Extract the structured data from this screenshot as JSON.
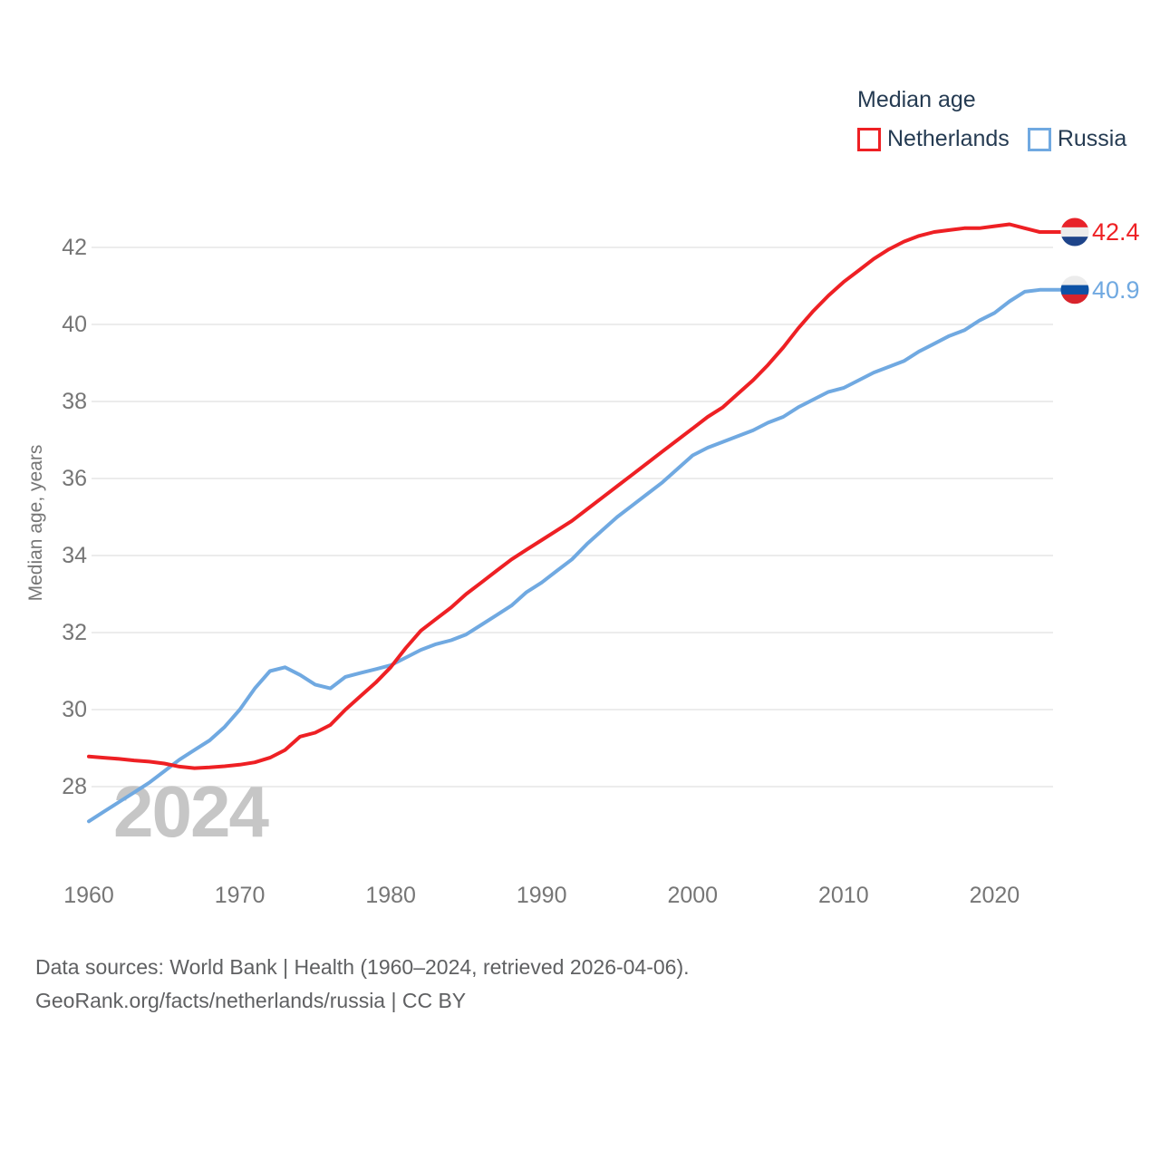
{
  "legend": {
    "title": "Median age",
    "items": [
      {
        "label": "Netherlands"
      },
      {
        "label": "Russia"
      }
    ]
  },
  "chart_data": {
    "type": "line",
    "title": "Median age",
    "ylabel": "Median age, years",
    "watermark": "2024",
    "grid": "horizontal",
    "legend_position": "top-right",
    "xlim": [
      1960,
      2024
    ],
    "ylim": [
      26.9,
      43.1
    ],
    "xticks": [
      1960,
      1970,
      1980,
      1990,
      2000,
      2010,
      2020
    ],
    "yticks": [
      28,
      30,
      32,
      34,
      36,
      38,
      40,
      42
    ],
    "x_step_years": 1,
    "series": [
      {
        "name": "Netherlands",
        "color": "#ee2024",
        "end_label": "42.4",
        "flag_name": "netherlands-flag",
        "flag_stripes": [
          "#e8232a",
          "#ececec",
          "#1e448a"
        ],
        "values": [
          28.78,
          28.75,
          28.72,
          28.68,
          28.65,
          28.6,
          28.52,
          28.48,
          28.5,
          28.53,
          28.57,
          28.63,
          28.75,
          28.95,
          29.3,
          29.4,
          29.6,
          30.0,
          30.35,
          30.7,
          31.1,
          31.6,
          32.05,
          32.35,
          32.65,
          33.0,
          33.3,
          33.6,
          33.9,
          34.15,
          34.4,
          34.65,
          34.9,
          35.2,
          35.5,
          35.8,
          36.1,
          36.4,
          36.7,
          37.0,
          37.3,
          37.6,
          37.85,
          38.2,
          38.55,
          38.95,
          39.4,
          39.9,
          40.35,
          40.75,
          41.1,
          41.4,
          41.7,
          41.95,
          42.15,
          42.3,
          42.4,
          42.45,
          42.5,
          42.5,
          42.55,
          42.6,
          42.5,
          42.4,
          42.4
        ]
      },
      {
        "name": "Russia",
        "color": "#70a9e1",
        "end_label": "40.9",
        "flag_name": "russia-flag",
        "flag_stripes": [
          "#ececec",
          "#0d52a5",
          "#d8242c"
        ],
        "values": [
          27.1,
          27.35,
          27.6,
          27.85,
          28.1,
          28.4,
          28.7,
          28.95,
          29.2,
          29.55,
          30.0,
          30.55,
          31.0,
          31.1,
          30.9,
          30.65,
          30.55,
          30.85,
          30.95,
          31.05,
          31.15,
          31.35,
          31.55,
          31.7,
          31.8,
          31.95,
          32.2,
          32.45,
          32.7,
          33.05,
          33.3,
          33.6,
          33.9,
          34.3,
          34.65,
          35.0,
          35.3,
          35.6,
          35.9,
          36.25,
          36.6,
          36.8,
          36.95,
          37.1,
          37.25,
          37.45,
          37.6,
          37.85,
          38.05,
          38.25,
          38.35,
          38.55,
          38.75,
          38.9,
          39.05,
          39.3,
          39.5,
          39.7,
          39.85,
          40.1,
          40.3,
          40.6,
          40.85,
          40.9,
          40.9
        ]
      }
    ]
  },
  "footer": {
    "line1": "Data sources: World Bank | Health (1960–2024, retrieved 2026-04-06).",
    "line2": "GeoRank.org/facts/netherlands/russia | CC BY"
  },
  "colors": {
    "tick_label": "#767676",
    "gridline": "#ececec",
    "legend_text": "#253b52",
    "watermark": "#c6c6c6",
    "footer_text": "#5f6062"
  }
}
